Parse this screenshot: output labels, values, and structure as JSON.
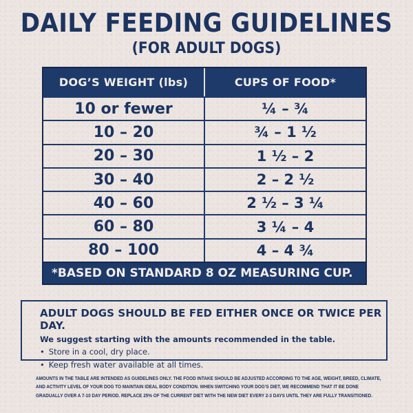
{
  "header": {
    "title": "DAILY FEEDING GUIDELINES",
    "subtitle": "(FOR ADULT DOGS)"
  },
  "table": {
    "columns": [
      "DOG’S WEIGHT (lbs)",
      "CUPS OF FOOD*"
    ],
    "rows": [
      {
        "weight": "10 or fewer",
        "cups": "¼ – ¾"
      },
      {
        "weight": "10 – 20",
        "cups": "¾ – 1 ½"
      },
      {
        "weight": "20 – 30",
        "cups": "1 ½ – 2"
      },
      {
        "weight": "30 – 40",
        "cups": "2 – 2 ½"
      },
      {
        "weight": "40 – 60",
        "cups": "2 ½ – 3 ¼"
      },
      {
        "weight": "60 – 80",
        "cups": "3 ¼ – 4"
      },
      {
        "weight": "80 – 100",
        "cups": "4 – 4 ¾"
      }
    ],
    "footnote": "*BASED ON STANDARD 8 OZ MEASURING CUP."
  },
  "info": {
    "heading": "ADULT DOGS SHOULD BE FED EITHER ONCE OR TWICE PER DAY.",
    "subheading": "We suggest starting with the amounts recommended in the table.",
    "bullets": [
      "Store in a cool, dry place.",
      "Keep fresh water available at all times."
    ]
  },
  "disclaimer": {
    "lines": [
      "AMOUNTS IN THE TABLE ARE INTENDED AS GUIDELINES ONLY. THE FOOD INTAKE SHOULD BE ADJUSTED ACCORDING TO THE AGE, WEIGHT, BREED, CLIMATE,",
      "AND ACTIVITY LEVEL OF YOUR DOG TO MAINTAIN IDEAL BODY CONDITION. WHEN SWITCHING YOUR DOG’S DIET, WE RECOMMEND THAT IT BE DONE",
      "GRADUALLY OVER A 7-10 DAY PERIOD. REPLACE 25% OF THE CURRENT DIET WITH THE NEW DIET EVERY 2-3 DAYS UNTIL THEY ARE FULLY TRANSITIONED."
    ]
  },
  "colors": {
    "navy": "#1d3a6b",
    "text_navy": "#1c3461",
    "background": "#ede5e1",
    "header_text": "#f3ede9"
  }
}
